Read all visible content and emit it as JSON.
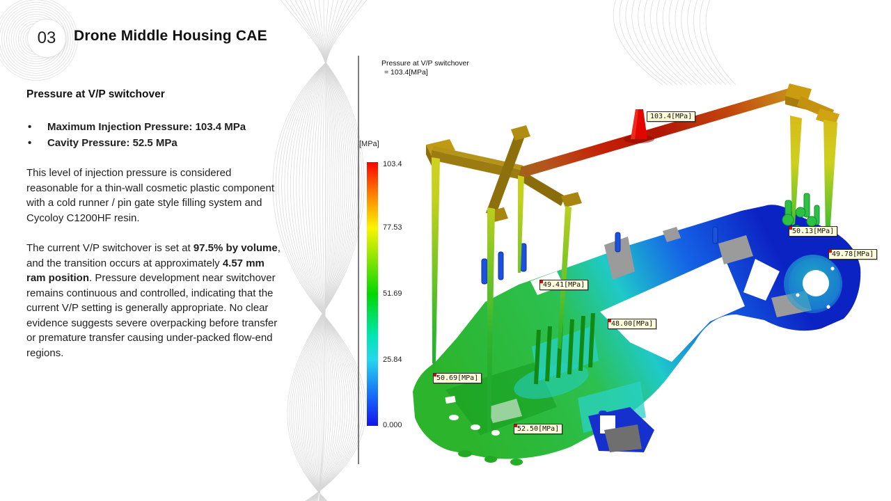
{
  "slide": {
    "badge": "03",
    "title": "Drone Middle Housing CAE"
  },
  "panel": {
    "heading": "Pressure at V/P switchover",
    "bullet_char": "•",
    "bullets": [
      "Maximum Injection Pressure: 103.4 MPa",
      "Cavity Pressure: 52.5 MPa"
    ],
    "para1": "This level of injection pressure is considered reasonable for a thin-wall cosmetic plastic component with a cold runner / pin gate style filling system and Cycoloy C1200HF resin.",
    "para2": {
      "t1": "The current V/P switchover is set at ",
      "b1": "97.5% by volume",
      "t2": ", and the transition occurs at approximately ",
      "b2": "4.57 mm ram position",
      "t3": ". Pressure development near switchover remains continuous and controlled, indicating that the current V/P setting is generally appropriate. No clear evidence suggests severe overpacking before transfer or premature transfer causing under-packed flow-end regions."
    }
  },
  "cae": {
    "annotation": {
      "line1": "Pressure at V/P switchover",
      "line2": "= 103.4[MPa]"
    },
    "legend": {
      "unit": "[MPa]",
      "ticks": [
        "103.4",
        "77.53",
        "51.69",
        "25.84",
        "0.000"
      ],
      "colors": [
        "#ff0000",
        "#ffff00",
        "#00d800",
        "#25d6ee",
        "#1414ee"
      ]
    },
    "probes": [
      {
        "text": "103.4[MPa]"
      },
      {
        "text": "50.13[MPa]"
      },
      {
        "text": "49.78[MPa]"
      },
      {
        "text": "49.41[MPa]"
      },
      {
        "text": "48.00[MPa]"
      },
      {
        "text": "50.69[MPa]"
      },
      {
        "text": "52.50[MPa]"
      }
    ],
    "result_summary": {
      "max_injection_pressure_mpa": 103.4,
      "cavity_pressure_mpa": 52.5,
      "vp_switchover_percent_volume": 97.5,
      "vp_switchover_ram_position_mm": 4.57
    }
  }
}
